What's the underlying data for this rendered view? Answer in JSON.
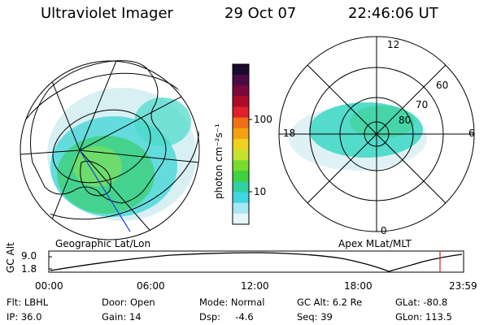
{
  "header": {
    "title": "Ultraviolet Imager",
    "date": "29 Oct 07",
    "time": "22:46:06 UT"
  },
  "colorbar": {
    "label": "photon cm⁻²s⁻¹",
    "ticks": [
      "100",
      "10"
    ],
    "colors": [
      "#1a0a2e",
      "#4b0a46",
      "#7a0a3c",
      "#b00a2a",
      "#e0202a",
      "#f07018",
      "#f5a010",
      "#f0d020",
      "#c8e030",
      "#78dc30",
      "#40d040",
      "#30d0a0",
      "#40d8e0",
      "#a8e8f0",
      "#e6f6fa"
    ]
  },
  "panels": {
    "left_label": "Geographic Lat/Lon",
    "right_label": "Apex MLat/MLT",
    "right_mlt_labels": [
      "12",
      "6",
      "0",
      "18"
    ],
    "right_mlat_labels": [
      "60",
      "70",
      "80"
    ]
  },
  "alt_plot": {
    "ylabel": "GC Alt",
    "y_ticks": [
      "9.0",
      "1.8"
    ],
    "x_ticks": [
      "00:00",
      "06:00",
      "12:00",
      "18:00",
      "23:59"
    ],
    "marker_color": "#d02020"
  },
  "info": {
    "row1": [
      "Flt: LBHL",
      "Door: Open",
      "Mode: Normal",
      "GC Alt: 6.2 Re",
      "GLat: -80.8"
    ],
    "row2": [
      "IP: 36.0",
      "Gain: 14",
      "Dsp:     -4.6",
      "Seq: 39",
      "GLon: 113.5"
    ]
  }
}
